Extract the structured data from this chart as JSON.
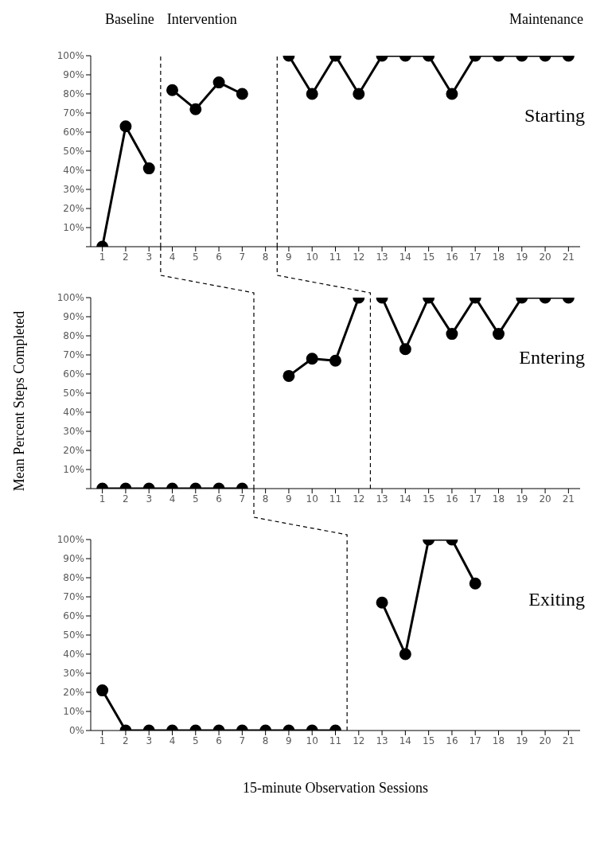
{
  "chart_data": [
    {
      "type": "line",
      "annotations": [
        "Baseline",
        "Intervention",
        "Maintenance",
        "Starting"
      ],
      "marker": "circle",
      "line_style": "solid",
      "grid": false,
      "legend": false,
      "xlim": [
        0.5,
        21.5
      ],
      "xticks": [
        1,
        2,
        3,
        4,
        5,
        6,
        7,
        8,
        9,
        10,
        11,
        12,
        13,
        14,
        15,
        16,
        17,
        18,
        19,
        20,
        21
      ],
      "ylim": [
        0,
        100
      ],
      "yticks": [
        {
          "value": 0,
          "label": null
        },
        {
          "value": 10,
          "label": "10%"
        },
        {
          "value": 20,
          "label": "20%"
        },
        {
          "value": 30,
          "label": "30%"
        },
        {
          "value": 40,
          "label": "40%"
        },
        {
          "value": 50,
          "label": "50%"
        },
        {
          "value": 60,
          "label": "60%"
        },
        {
          "value": 70,
          "label": "70%"
        },
        {
          "value": 80,
          "label": "80%"
        },
        {
          "value": 90,
          "label": "90%"
        },
        {
          "value": 100,
          "label": "100%"
        }
      ],
      "ref_lines": [
        {
          "axis": "x",
          "value": 3.5,
          "color": "#000000",
          "line_style": "dashed"
        },
        {
          "axis": "x",
          "value": 8.5,
          "color": "#000000",
          "line_style": "dashed"
        }
      ],
      "series": [
        {
          "color": "#000000",
          "x": [
            1,
            2,
            3
          ],
          "values": [
            0,
            63,
            41
          ]
        },
        {
          "color": "#000000",
          "x": [
            4,
            5,
            6,
            7
          ],
          "values": [
            82,
            72,
            86,
            80
          ]
        },
        {
          "color": "#000000",
          "x": [
            9,
            10,
            11,
            12,
            13,
            14,
            15,
            16,
            17,
            18,
            19,
            20,
            21
          ],
          "values": [
            100,
            80,
            100,
            80,
            100,
            100,
            100,
            80,
            100,
            100,
            100,
            100,
            100
          ]
        }
      ]
    },
    {
      "type": "line",
      "ylabel": "Mean Percent Steps Completed",
      "annotations": [
        "Entering"
      ],
      "marker": "circle",
      "line_style": "solid",
      "grid": false,
      "legend": false,
      "xlim": [
        0.5,
        21.5
      ],
      "xticks": [
        1,
        2,
        3,
        4,
        5,
        6,
        7,
        8,
        9,
        10,
        11,
        12,
        13,
        14,
        15,
        16,
        17,
        18,
        19,
        20,
        21
      ],
      "ylim": [
        0,
        100
      ],
      "yticks": [
        {
          "value": 0,
          "label": null
        },
        {
          "value": 10,
          "label": "10%"
        },
        {
          "value": 20,
          "label": "20%"
        },
        {
          "value": 30,
          "label": "30%"
        },
        {
          "value": 40,
          "label": "40%"
        },
        {
          "value": 50,
          "label": "50%"
        },
        {
          "value": 60,
          "label": "60%"
        },
        {
          "value": 70,
          "label": "70%"
        },
        {
          "value": 80,
          "label": "80%"
        },
        {
          "value": 90,
          "label": "90%"
        },
        {
          "value": 100,
          "label": "100%"
        }
      ],
      "ref_lines": [
        {
          "axis": "x",
          "value": 7.5,
          "color": "#000000",
          "line_style": "dashed"
        },
        {
          "axis": "x",
          "value": 12.5,
          "color": "#000000",
          "line_style": "dashed"
        }
      ],
      "series": [
        {
          "color": "#000000",
          "x": [
            1,
            2,
            3,
            4,
            5,
            6,
            7
          ],
          "values": [
            0,
            0,
            0,
            0,
            0,
            0,
            0
          ]
        },
        {
          "color": "#000000",
          "x": [
            9,
            10,
            11,
            12
          ],
          "values": [
            59,
            68,
            67,
            100
          ]
        },
        {
          "color": "#000000",
          "x": [
            13,
            14,
            15,
            16,
            17,
            18,
            19,
            20,
            21
          ],
          "values": [
            100,
            73,
            100,
            81,
            100,
            81,
            100,
            100,
            100
          ]
        }
      ]
    },
    {
      "type": "line",
      "xlabel": "15-minute Observation Sessions",
      "annotations": [
        "Exiting"
      ],
      "marker": "circle",
      "line_style": "solid",
      "grid": false,
      "legend": false,
      "xlim": [
        0.5,
        21.5
      ],
      "xticks": [
        1,
        2,
        3,
        4,
        5,
        6,
        7,
        8,
        9,
        10,
        11,
        12,
        13,
        14,
        15,
        16,
        17,
        18,
        19,
        20,
        21
      ],
      "ylim": [
        0,
        100
      ],
      "yticks": [
        {
          "value": 0,
          "label": "0%"
        },
        {
          "value": 10,
          "label": "10%"
        },
        {
          "value": 20,
          "label": "20%"
        },
        {
          "value": 30,
          "label": "30%"
        },
        {
          "value": 40,
          "label": "40%"
        },
        {
          "value": 50,
          "label": "50%"
        },
        {
          "value": 60,
          "label": "60%"
        },
        {
          "value": 70,
          "label": "70%"
        },
        {
          "value": 80,
          "label": "80%"
        },
        {
          "value": 90,
          "label": "90%"
        },
        {
          "value": 100,
          "label": "100%"
        }
      ],
      "ref_lines": [
        {
          "axis": "x",
          "value": 11.5,
          "color": "#000000",
          "line_style": "dashed"
        }
      ],
      "series": [
        {
          "color": "#000000",
          "x": [
            1,
            2,
            3,
            4,
            5,
            6,
            7,
            8,
            9,
            10,
            11
          ],
          "values": [
            21,
            0,
            0,
            0,
            0,
            0,
            0,
            0,
            0,
            0,
            0
          ]
        },
        {
          "color": "#000000",
          "x": [
            13,
            14,
            15,
            16,
            17
          ],
          "values": [
            67,
            40,
            100,
            100,
            77
          ]
        }
      ]
    }
  ]
}
